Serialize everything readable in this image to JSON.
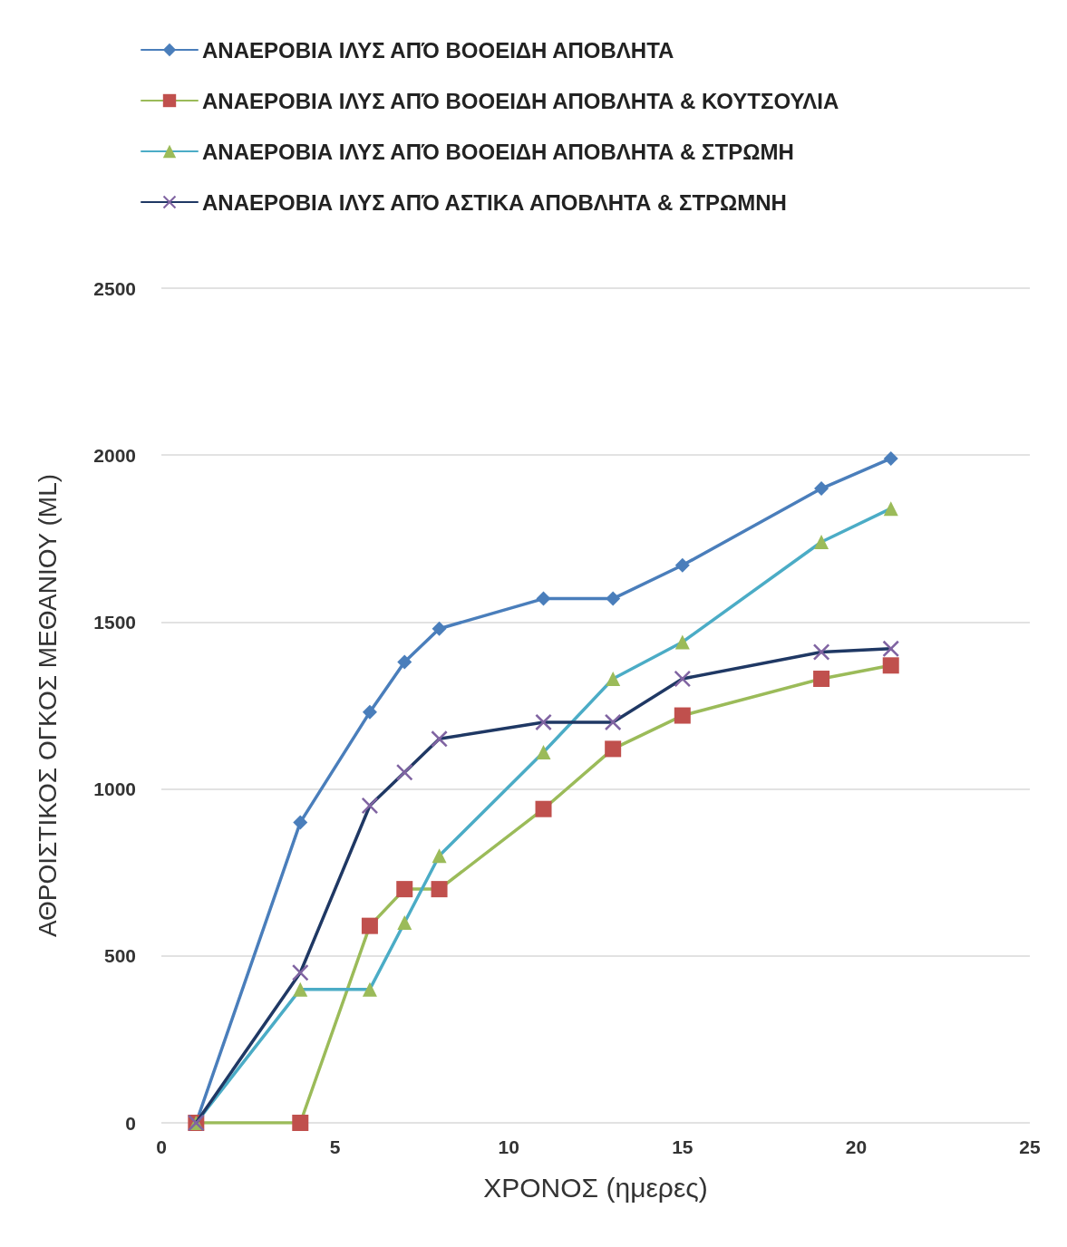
{
  "chart_data": {
    "type": "line",
    "xlabel": "ΧΡΟΝΟΣ (ημερες)",
    "ylabel": "ΑΘΡΟΙΣΤΙΚΟΣ ΟΓΚΟΣ ΜΕΘΑΝΙΟΥ (ML)",
    "x": [
      1,
      4,
      6,
      7,
      8,
      11,
      13,
      15,
      19,
      21
    ],
    "xlim": [
      0,
      25
    ],
    "xticks": [
      0,
      5,
      10,
      15,
      20,
      25
    ],
    "ylim": [
      0,
      2500
    ],
    "yticks": [
      0,
      500,
      1000,
      1500,
      2000,
      2500
    ],
    "grid": "y",
    "legend": "top left",
    "series": [
      {
        "name": "ΑΝΑΕΡΟΒΙΑ ΙΛΥΣ ΑΠΌ ΒΟΟΕΙΔΗ ΑΠΟΒΛΗΤΑ",
        "color": "#4a7ebb",
        "marker": "diamond",
        "values": [
          0,
          900,
          1230,
          1380,
          1480,
          1570,
          1570,
          1670,
          1900,
          1990
        ]
      },
      {
        "name": "ΑΝΑΕΡΟΒΙΑ ΙΛΥΣ ΑΠΌ ΒΟΟΕΙΔΗ ΑΠΟΒΛΗΤΑ & ΚΟΥΤΣΟΥΛΙΑ",
        "color": "#9bbb59",
        "colors": [
          "#c0504d",
          "#c0504d",
          "#c0504d",
          "#c0504d",
          "#c0504d",
          "#c0504d",
          "#c0504d",
          "#c0504d",
          "#c0504d",
          "#c0504d"
        ],
        "marker": "square",
        "values": [
          0,
          0,
          590,
          700,
          700,
          940,
          1120,
          1220,
          1330,
          1370
        ]
      },
      {
        "name": "ΑΝΑΕΡΟΒΙΑ ΙΛΥΣ ΑΠΌ ΒΟΟΕΙΔΗ ΑΠΟΒΛΗΤΑ & ΣΤΡΩΜΗ",
        "color": "#4bacc6",
        "colors": [
          "#9bbb59",
          "#9bbb59",
          "#9bbb59",
          "#9bbb59",
          "#9bbb59",
          "#9bbb59",
          "#9bbb59",
          "#9bbb59",
          "#9bbb59",
          "#9bbb59"
        ],
        "marker": "triangle",
        "values": [
          0,
          400,
          400,
          600,
          800,
          1110,
          1330,
          1440,
          1740,
          1840
        ]
      },
      {
        "name": "ΑΝΑΕΡΟΒΙΑ ΙΛΥΣ ΑΠΌ ΑΣΤΙΚΑ ΑΠΟΒΛΗΤΑ & ΣΤΡΩΜΝΗ",
        "color": "#1f3864",
        "colors": [
          "#8064a2",
          "#8064a2",
          "#8064a2",
          "#8064a2",
          "#8064a2",
          "#8064a2",
          "#8064a2",
          "#8064a2",
          "#8064a2",
          "#8064a2"
        ],
        "marker": "cross",
        "values": [
          0,
          450,
          950,
          1050,
          1150,
          1200,
          1200,
          1330,
          1410,
          1420
        ]
      }
    ]
  }
}
